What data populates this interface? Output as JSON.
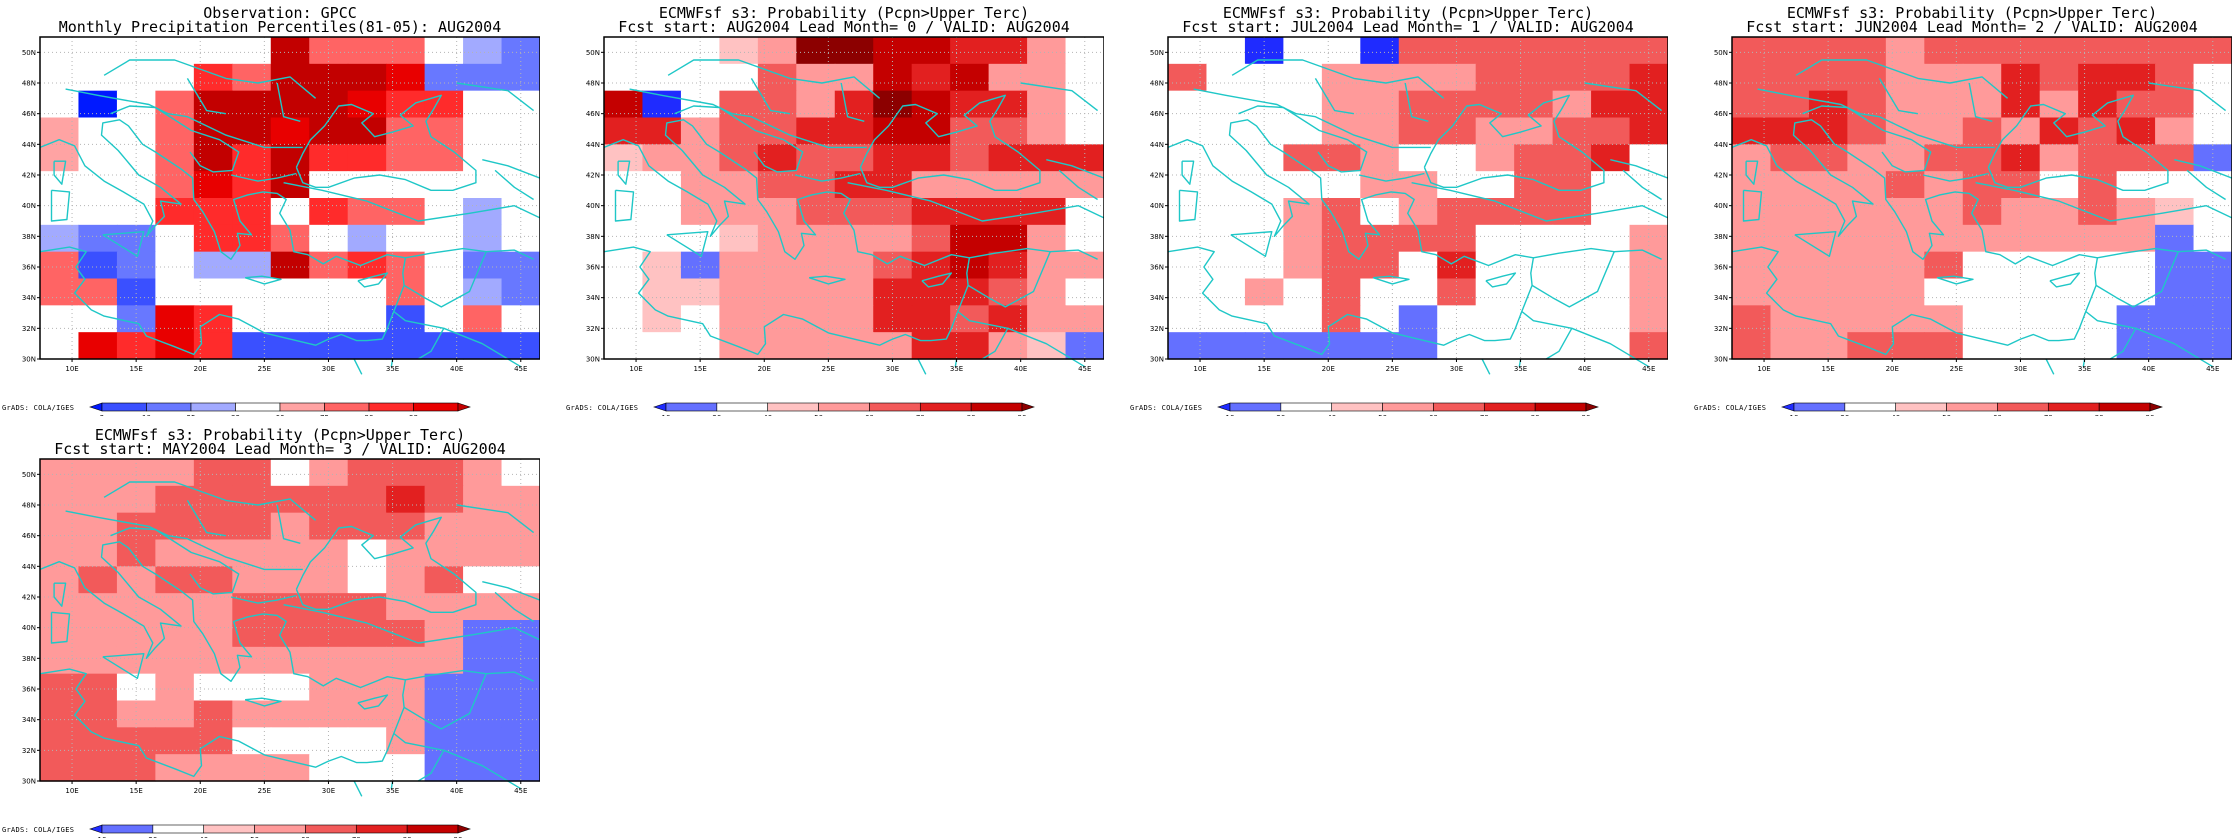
{
  "colors": {
    "coast": "#1fc7c7",
    "grid": "#b4b4b4",
    "frame": "#000000",
    "obs_scale": [
      "#0019ff",
      "#3a50ff",
      "#6878ff",
      "#a2aaff",
      "#ffffff",
      "#ffa3a3",
      "#ff6464",
      "#ff2b2b",
      "#e80000",
      "#c20000"
    ],
    "prob_scale": [
      "#1f2bff",
      "#6470ff",
      "#ffffff",
      "#ffc2c2",
      "#ff9a9a",
      "#f25a5a",
      "#e22020",
      "#c40000",
      "#8c0000"
    ]
  },
  "panels": [
    {
      "id": "obs",
      "title_line1": "Observation: GPCC",
      "title_line2": "Monthly Precipitation Percentiles(81-05): AUG2004",
      "scale": "obs",
      "colorbar_labels": [
        "2",
        "10",
        "25",
        "33",
        "66",
        "75",
        "90",
        "98"
      ],
      "credit": "GrADS: COLA/IGES",
      "grid": [
        "4444449666432",
        "4444769998222",
        "4046999987744",
        "5446998996644",
        "5446979776644",
        "4446879444444",
        "4447774766434",
        "3224776434434",
        "6124339676422",
        "6614444446432",
        "4428744441464",
        "4878711111111"
      ]
    },
    {
      "id": "lm0",
      "title_line1": "ECMWFsf s3: Probability (Pcpn>Upper Terc)",
      "title_line2": "Fcst start: AUG2004   Lead Month= 0 / VALID: AUG2004",
      "scale": "prob",
      "colorbar_labels": [
        "10",
        "20",
        "40",
        "50",
        "60",
        "70",
        "80",
        "90"
      ],
      "credit": "GrADS: COLA/IGES",
      "grid": [
        "2223488776642",
        "2222544767442",
        "7025546876642",
        "6645566775542",
        "3445655665666",
        "2244556644444",
        "2244455566662",
        "2223444457742",
        "2314444567644",
        "2334444666542",
        "2324444665644",
        "2224444466431"
      ]
    },
    {
      "id": "lm1",
      "title_line1": "ECMWFsf s3: Probability (Pcpn>Upper Terc)",
      "title_line2": "Fcst start: JUL2004   Lead Month= 1 / VALID: AUG2004",
      "scale": "prob",
      "colorbar_labels": [
        "10",
        "20",
        "40",
        "50",
        "60",
        "70",
        "80",
        "90"
      ],
      "credit": "GrADS: COLA/IGES",
      "grid": [
        "2202205555555",
        "5222444455556",
        "2222445555466",
        "2222445544556",
        "2225542245562",
        "2222244225522",
        "2224524555522",
        "2224555522224",
        "2224552622224",
        "2242522522224",
        "2222521222224",
        "1111111222225"
      ]
    },
    {
      "id": "lm2",
      "title_line1": "ECMWFsf s3: Probability (Pcpn>Upper Terc)",
      "title_line2": "Fcst start: JUN2004   Lead Month= 2 / VALID: AUG2004",
      "scale": "prob",
      "colorbar_labels": [
        "10",
        "20",
        "40",
        "50",
        "60",
        "70",
        "80",
        "90"
      ],
      "credit": "GrADS: COLA/IGES",
      "grid": [
        "5555455555555",
        "5555444656652",
        "5565444646552",
        "6665445465642",
        "4554455645551",
        "4444545525222",
        "4444445445432",
        "4444444444412",
        "4444452222211",
        "4444422222211",
        "5444442222111",
        "5445552222111"
      ]
    },
    {
      "id": "lm3",
      "title_line1": "ECMWFsf s3: Probability (Pcpn>Upper Terc)",
      "title_line2": "Fcst start: MAY2004   Lead Month= 3 / VALID: AUG2004",
      "scale": "prob",
      "colorbar_labels": [
        "10",
        "20",
        "40",
        "50",
        "60",
        "70",
        "80",
        "90"
      ],
      "credit": "GrADS: COLA/IGES",
      "grid": [
        "4444552455542",
        "4445555556544",
        "4455554555444",
        "4454444424444",
        "4545544424522",
        "4444455554444",
        "4444455555411",
        "4444444444411",
        "5524222444111",
        "5544544444111",
        "5555522224111",
        "5554444222111"
      ]
    }
  ],
  "map_axes": {
    "x_ticks": [
      "10E",
      "15E",
      "20E",
      "25E",
      "30E",
      "35E",
      "40E",
      "45E"
    ],
    "y_ticks": [
      "50N",
      "48N",
      "46N",
      "44N",
      "42N",
      "40N",
      "38N",
      "36N",
      "34N",
      "32N",
      "30N"
    ],
    "lon_range": [
      7.5,
      46.5
    ],
    "lat_range": [
      30,
      51
    ]
  }
}
